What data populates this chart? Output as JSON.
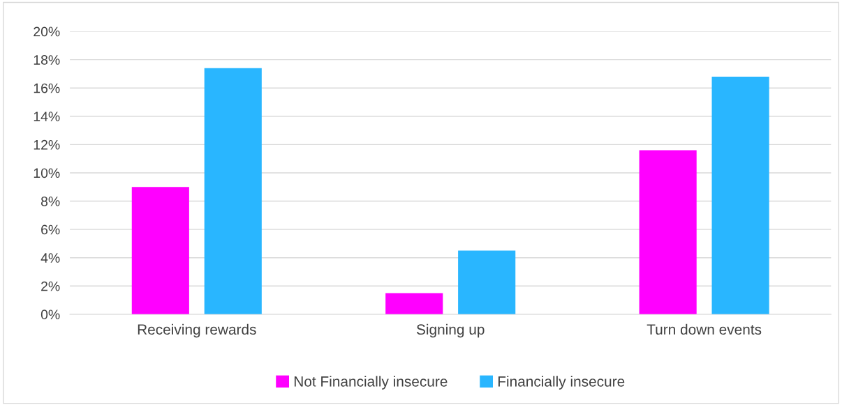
{
  "chart_data": {
    "type": "bar",
    "categories": [
      "Receiving rewards",
      "Signing up",
      "Turn down events"
    ],
    "series": [
      {
        "name": "Not Financially insecure",
        "color": "#ff00ff",
        "values": [
          9.0,
          1.5,
          11.6
        ]
      },
      {
        "name": "Financially insecure",
        "color": "#29b6ff",
        "values": [
          17.4,
          4.5,
          16.8
        ]
      }
    ],
    "ylim": [
      0,
      20
    ],
    "yticks": [
      {
        "value": 0,
        "label": "0%"
      },
      {
        "value": 2,
        "label": "2%"
      },
      {
        "value": 4,
        "label": "4%"
      },
      {
        "value": 6,
        "label": "6%"
      },
      {
        "value": 8,
        "label": "8%"
      },
      {
        "value": 10,
        "label": "10%"
      },
      {
        "value": 12,
        "label": "12%"
      },
      {
        "value": 14,
        "label": "14%"
      },
      {
        "value": 16,
        "label": "16%"
      },
      {
        "value": 18,
        "label": "18%"
      },
      {
        "value": 20,
        "label": "20%"
      }
    ],
    "grid": "y",
    "legend": "bottom"
  }
}
